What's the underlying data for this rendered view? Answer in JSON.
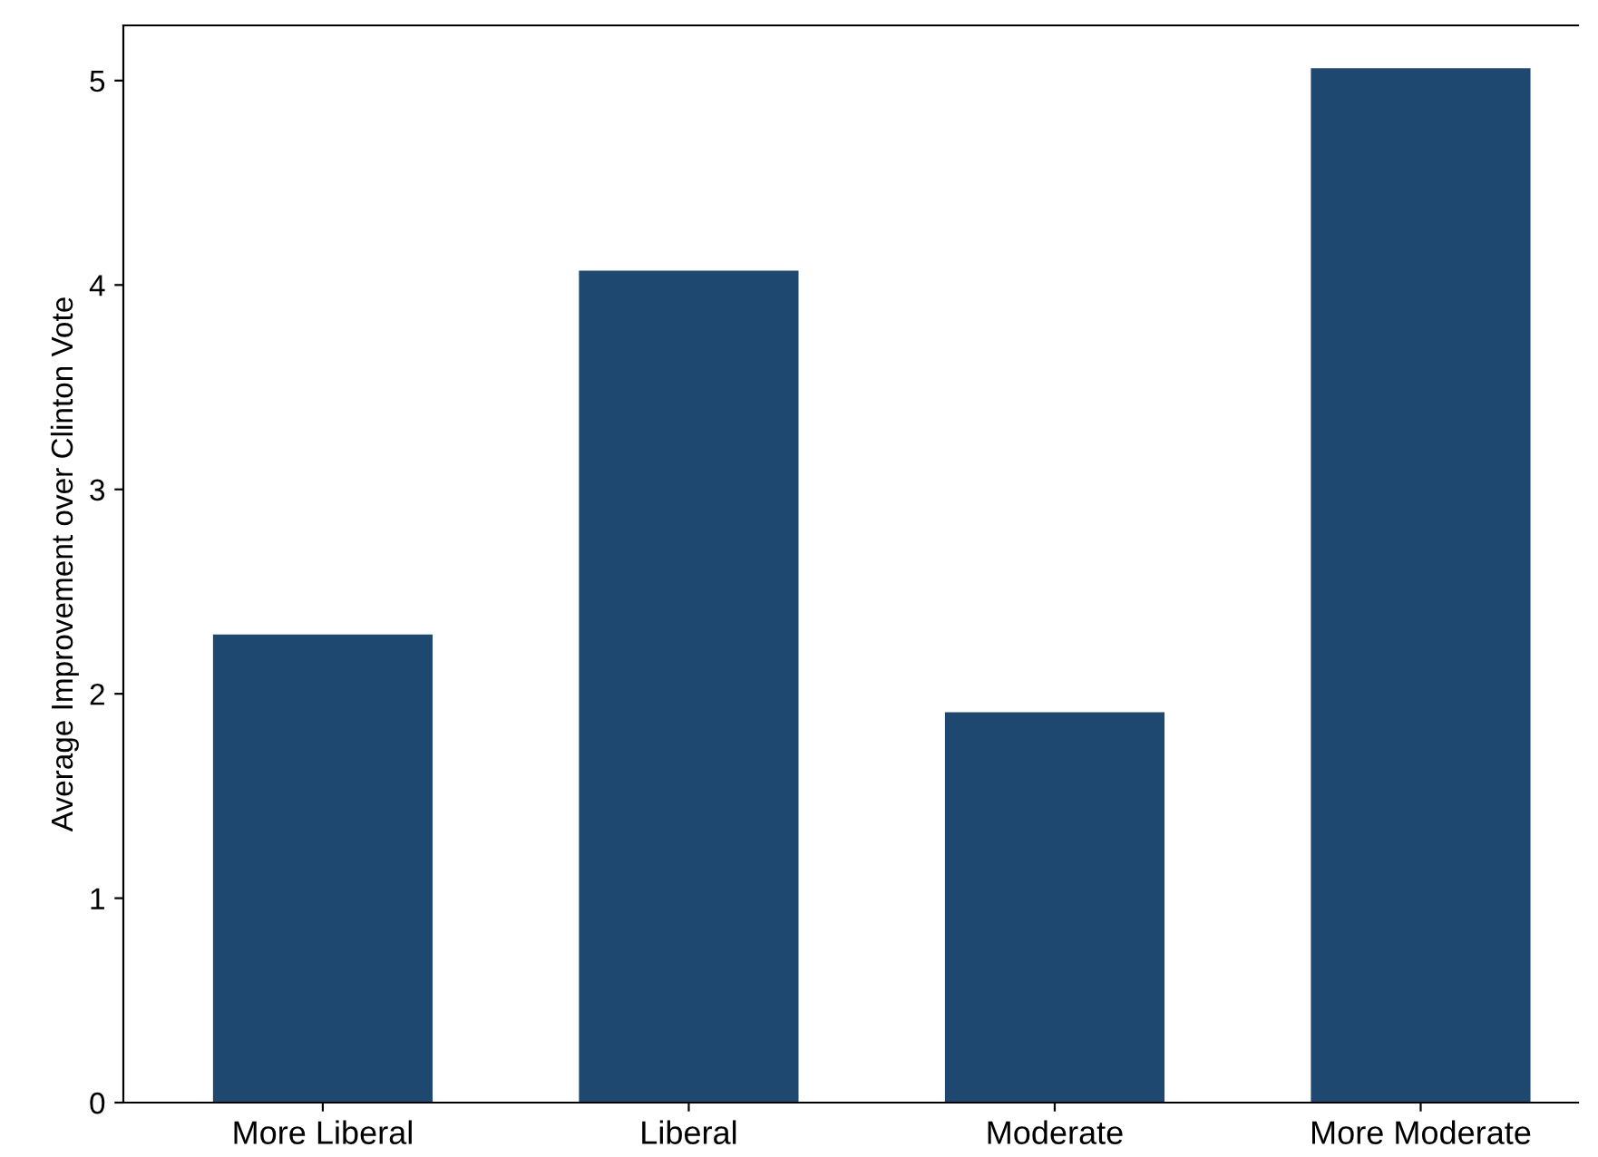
{
  "chart_data": {
    "type": "bar",
    "ylabel": "Average Improvement over Clinton Vote",
    "categories": [
      "More Liberal",
      "Liberal",
      "Moderate",
      "More Moderate"
    ],
    "values": [
      2.29,
      4.07,
      1.91,
      5.06
    ],
    "color": "#1f4870",
    "ylim": [
      0,
      5.27
    ],
    "yticks": [
      0,
      1,
      2,
      3,
      4,
      5
    ],
    "grid": false,
    "legend": false
  }
}
